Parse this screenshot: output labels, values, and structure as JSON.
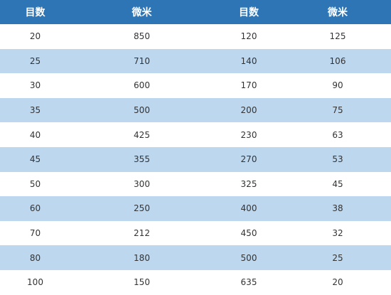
{
  "table": {
    "headers": [
      "目数",
      "微米",
      "目数",
      "微米"
    ],
    "rows": [
      [
        "20",
        "850",
        "120",
        "125"
      ],
      [
        "25",
        "710",
        "140",
        "106"
      ],
      [
        "30",
        "600",
        "170",
        "90"
      ],
      [
        "35",
        "500",
        "200",
        "75"
      ],
      [
        "40",
        "425",
        "230",
        "63"
      ],
      [
        "45",
        "355",
        "270",
        "53"
      ],
      [
        "50",
        "300",
        "325",
        "45"
      ],
      [
        "60",
        "250",
        "400",
        "38"
      ],
      [
        "70",
        "212",
        "450",
        "32"
      ],
      [
        "80",
        "180",
        "500",
        "25"
      ],
      [
        "100",
        "150",
        "635",
        "20"
      ]
    ]
  },
  "colors": {
    "header_bg": "#2e75b6",
    "header_text": "#ffffff",
    "stripe": "#bdd7ee",
    "row_bg": "#ffffff"
  }
}
